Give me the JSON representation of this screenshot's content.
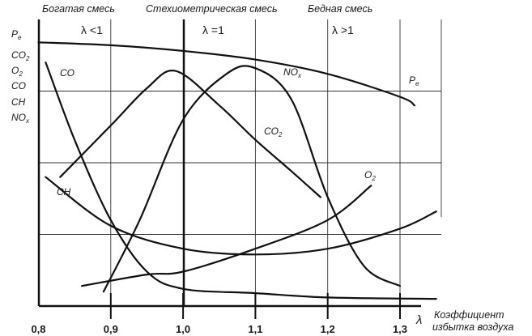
{
  "header": {
    "rich": "Богатая смесь",
    "stoich": "Стехиометрическая смесь",
    "lean": "Бедная смесь"
  },
  "regions": {
    "rich": "λ <1",
    "stoich": "λ =1",
    "lean": "λ >1"
  },
  "yaxis_labels": [
    "P",
    "CO",
    "O",
    "CO",
    "CH",
    "NO"
  ],
  "yaxis_subs": {
    "pe": "e",
    "co2": "2",
    "o2": "2",
    "nox": "x"
  },
  "xaxis": {
    "ticks": [
      "0,8",
      "0,9",
      "1,0",
      "1,1",
      "1,2",
      "1,3"
    ],
    "symbol": "λ",
    "title_line1": "Коэффициент",
    "title_line2": "избытка воздуха"
  },
  "curve_labels": {
    "co": "CO",
    "ch": "CH",
    "co2": "CO",
    "co2_sub": "2",
    "nox": "NO",
    "nox_sub": "x",
    "o2": "O",
    "o2_sub": "2",
    "pe": "P",
    "pe_sub": "e"
  },
  "chart_data": {
    "type": "line",
    "xlabel": "Коэффициент избытка воздуха λ",
    "x_ticks": [
      0.8,
      0.9,
      1.0,
      1.1,
      1.2,
      1.3
    ],
    "xlim": [
      0.8,
      1.35
    ],
    "y_scale": "qualitative (no numeric values)",
    "ylim": [
      0,
      100
    ],
    "grid": true,
    "stoichiometric_line_x": 1.0,
    "series": [
      {
        "name": "Pe",
        "points": [
          [
            0.8,
            92
          ],
          [
            0.9,
            91
          ],
          [
            1.0,
            89
          ],
          [
            1.1,
            86
          ],
          [
            1.2,
            81
          ],
          [
            1.3,
            73
          ],
          [
            1.32,
            70
          ]
        ]
      },
      {
        "name": "CO",
        "points": [
          [
            0.81,
            85
          ],
          [
            0.85,
            58
          ],
          [
            0.9,
            30
          ],
          [
            0.95,
            12
          ],
          [
            1.0,
            6
          ],
          [
            1.1,
            4.5
          ],
          [
            1.2,
            3
          ],
          [
            1.35,
            2.5
          ]
        ]
      },
      {
        "name": "CO2",
        "points": [
          [
            0.83,
            45
          ],
          [
            0.9,
            63
          ],
          [
            0.95,
            76
          ],
          [
            0.99,
            82
          ],
          [
            1.05,
            70
          ],
          [
            1.1,
            58
          ],
          [
            1.15,
            47
          ],
          [
            1.19,
            38
          ]
        ]
      },
      {
        "name": "NOx",
        "points": [
          [
            0.89,
            5
          ],
          [
            0.94,
            30
          ],
          [
            1.0,
            65
          ],
          [
            1.06,
            81
          ],
          [
            1.1,
            83
          ],
          [
            1.15,
            72
          ],
          [
            1.2,
            38
          ],
          [
            1.25,
            14
          ],
          [
            1.3,
            7
          ]
        ]
      },
      {
        "name": "CH",
        "points": [
          [
            0.81,
            45
          ],
          [
            0.9,
            28
          ],
          [
            1.0,
            20
          ],
          [
            1.1,
            18
          ],
          [
            1.2,
            20
          ],
          [
            1.3,
            27
          ],
          [
            1.35,
            33
          ]
        ]
      },
      {
        "name": "O2",
        "points": [
          [
            0.86,
            7
          ],
          [
            0.95,
            11
          ],
          [
            1.0,
            12
          ],
          [
            1.1,
            20
          ],
          [
            1.2,
            30
          ],
          [
            1.26,
            42
          ]
        ]
      }
    ]
  }
}
